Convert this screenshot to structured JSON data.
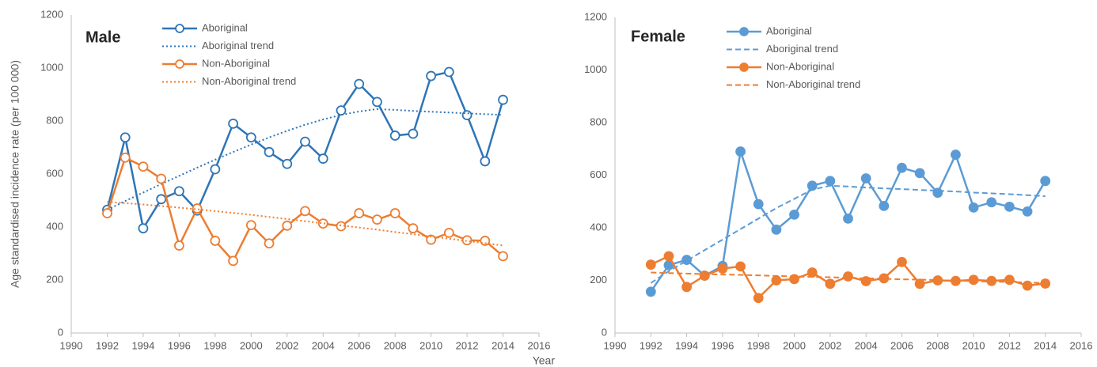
{
  "chart_data": [
    {
      "type": "line",
      "title": "Male",
      "ylabel": "Age standardised incidence  rate (per 100 000)",
      "xlabel": "Year",
      "x": [
        1992,
        1993,
        1994,
        1995,
        1996,
        1997,
        1998,
        1999,
        2000,
        2001,
        2002,
        2003,
        2004,
        2005,
        2006,
        2007,
        2008,
        2009,
        2010,
        2011,
        2012,
        2013,
        2014
      ],
      "xlim": [
        1990,
        2016
      ],
      "xticks": [
        1990,
        1992,
        1994,
        1996,
        1998,
        2000,
        2002,
        2004,
        2006,
        2008,
        2010,
        2012,
        2014,
        2016
      ],
      "ylim": [
        0,
        1200
      ],
      "yticks": [
        0,
        200,
        400,
        600,
        800,
        1000,
        1200
      ],
      "grid": false,
      "series": [
        {
          "name": "Aboriginal",
          "color": "#2e75b6",
          "marker": "open",
          "dash": "solid",
          "values": [
            465,
            738,
            395,
            505,
            535,
            462,
            618,
            790,
            738,
            683,
            638,
            722,
            658,
            840,
            940,
            872,
            745,
            752,
            970,
            985,
            822,
            648,
            880
          ]
        },
        {
          "name": "Aboriginal trend",
          "color": "#2e75b6",
          "marker": "none",
          "dash": "dotted",
          "values": [
            465,
            498,
            530,
            562,
            593,
            624,
            654,
            683,
            711,
            738,
            763,
            786,
            806,
            823,
            836,
            845,
            842,
            838,
            835,
            832,
            829,
            826,
            823
          ]
        },
        {
          "name": "Non-Aboriginal",
          "color": "#ed7d31",
          "marker": "open",
          "dash": "solid",
          "values": [
            452,
            662,
            628,
            582,
            330,
            470,
            348,
            272,
            407,
            338,
            405,
            460,
            413,
            403,
            452,
            428,
            452,
            395,
            352,
            378,
            350,
            348,
            290
          ]
        },
        {
          "name": "Non-Aboriginal trend",
          "color": "#ed7d31",
          "marker": "none",
          "dash": "dotted",
          "values": [
            495,
            490,
            485,
            479,
            473,
            467,
            460,
            453,
            446,
            438,
            430,
            422,
            414,
            406,
            398,
            390,
            381,
            373,
            364,
            356,
            347,
            339,
            330
          ]
        }
      ]
    },
    {
      "type": "line",
      "title": "Female",
      "x": [
        1992,
        1993,
        1994,
        1995,
        1996,
        1997,
        1998,
        1999,
        2000,
        2001,
        2002,
        2003,
        2004,
        2005,
        2006,
        2007,
        2008,
        2009,
        2010,
        2011,
        2012,
        2013,
        2014
      ],
      "xlim": [
        1990,
        2016
      ],
      "xticks": [
        1990,
        1992,
        1994,
        1996,
        1998,
        2000,
        2002,
        2004,
        2006,
        2008,
        2010,
        2012,
        2014,
        2016
      ],
      "ylim": [
        0,
        1200
      ],
      "yticks": [
        0,
        200,
        400,
        600,
        800,
        1000,
        1200
      ],
      "grid": false,
      "series": [
        {
          "name": "Aboriginal",
          "color": "#5b9bd5",
          "marker": "filled",
          "dash": "solid",
          "values": [
            157,
            258,
            278,
            218,
            255,
            690,
            490,
            393,
            450,
            560,
            578,
            435,
            588,
            483,
            628,
            608,
            533,
            678,
            477,
            497,
            480,
            462,
            578
          ]
        },
        {
          "name": "Aboriginal trend",
          "color": "#5b9bd5",
          "marker": "none",
          "dash": "dashed",
          "values": [
            190,
            235,
            275,
            315,
            355,
            395,
            435,
            475,
            510,
            545,
            560,
            557,
            553,
            550,
            547,
            544,
            541,
            538,
            534,
            531,
            528,
            524,
            520
          ]
        },
        {
          "name": "Non-Aboriginal",
          "color": "#ed7d31",
          "marker": "filled",
          "dash": "solid",
          "values": [
            260,
            292,
            175,
            218,
            245,
            253,
            133,
            200,
            205,
            230,
            187,
            215,
            197,
            208,
            270,
            187,
            200,
            198,
            202,
            198,
            202,
            180,
            188
          ]
        },
        {
          "name": "Non-Aboriginal trend",
          "color": "#ed7d31",
          "marker": "none",
          "dash": "dashed",
          "values": [
            230,
            228,
            226,
            224,
            222,
            221,
            219,
            217,
            215,
            213,
            212,
            210,
            208,
            206,
            204,
            203,
            201,
            199,
            197,
            195,
            194,
            192,
            190
          ]
        }
      ]
    }
  ]
}
